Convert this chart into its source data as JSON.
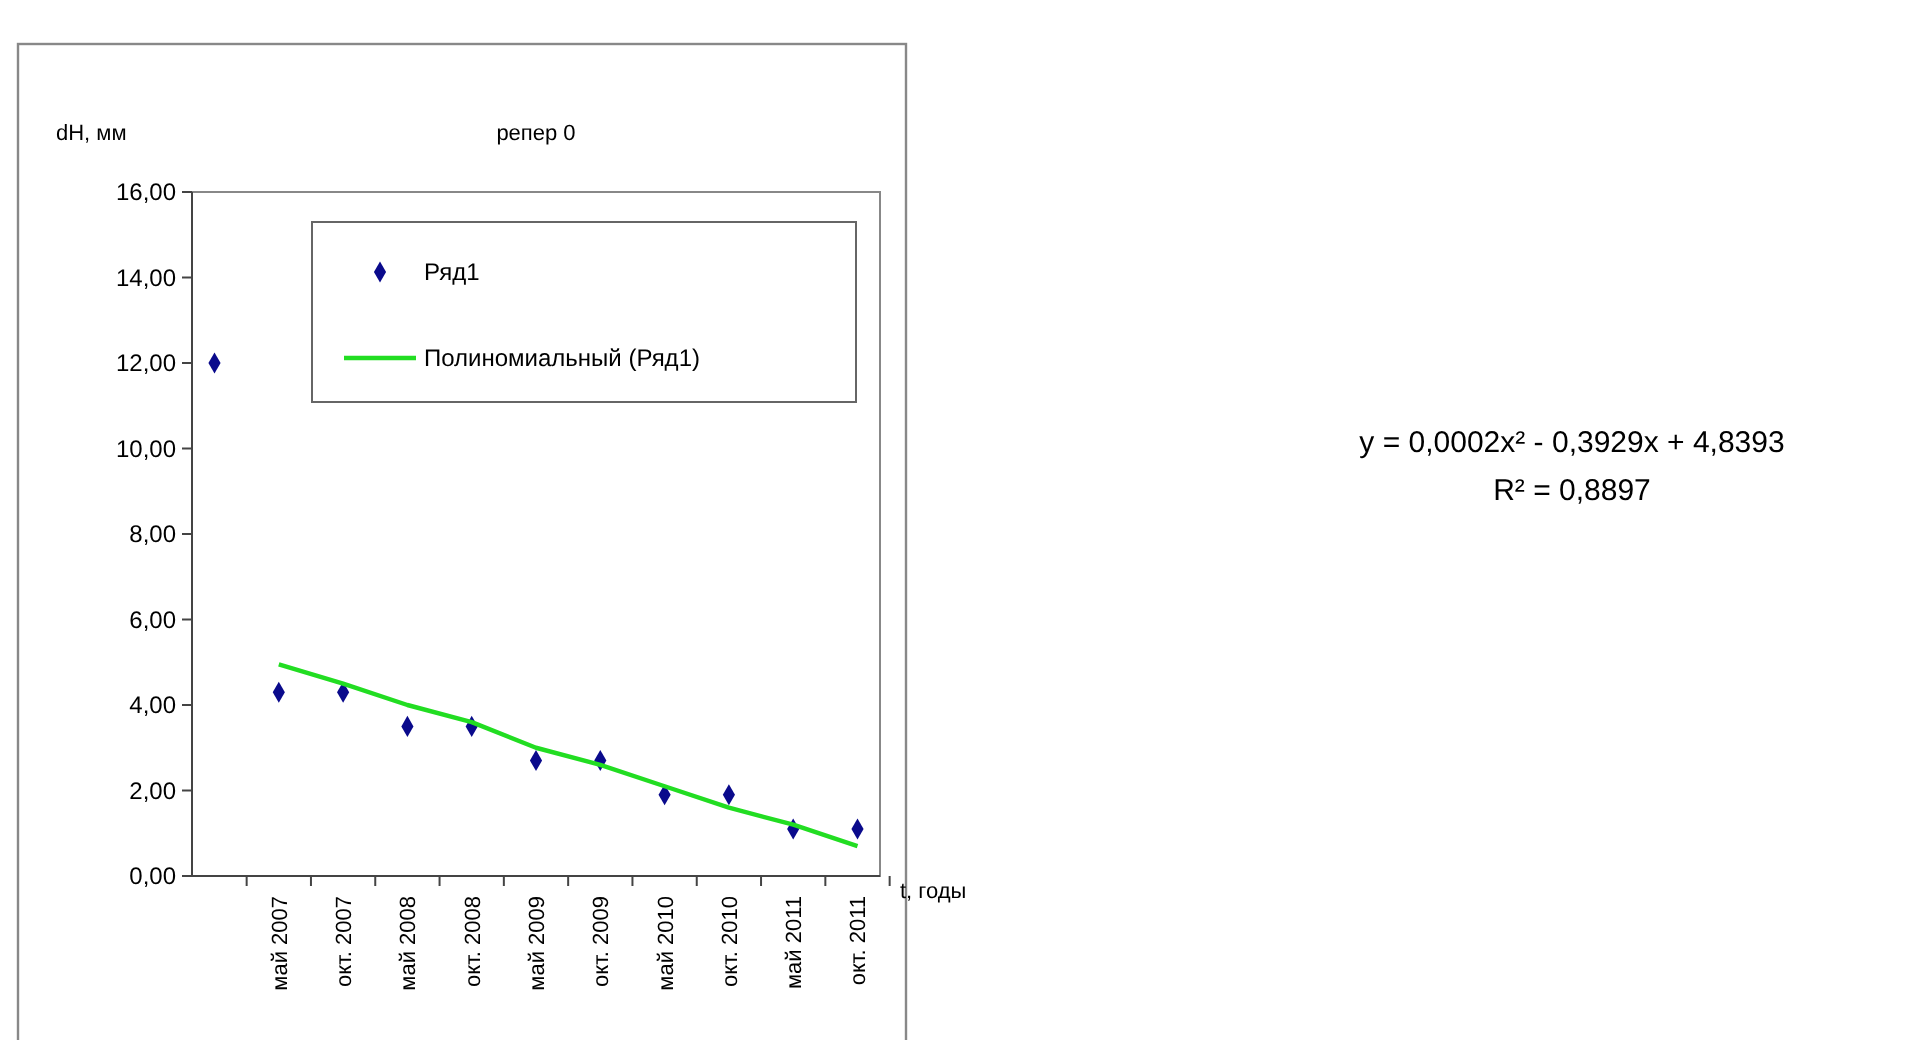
{
  "chart_data": {
    "type": "scatter",
    "title": "репер 0",
    "xlabel": "t, годы",
    "ylabel": "dH, мм",
    "categories": [
      null,
      "май 2007",
      "окт. 2007",
      "май 2008",
      "окт. 2008",
      "май 2009",
      "окт. 2009",
      "май 2010",
      "окт. 2010",
      "май 2011",
      "окт. 2011"
    ],
    "series": [
      {
        "name": "Ряд1",
        "marker": "diamond",
        "color": "#0a0a8c",
        "values": [
          12.0,
          4.3,
          4.3,
          3.5,
          3.5,
          2.7,
          2.7,
          1.9,
          1.9,
          1.1,
          1.1
        ]
      },
      {
        "name": "Полиномиальный (Ряд1)",
        "type": "line",
        "color": "#22dd22",
        "values": [
          null,
          4.95,
          4.5,
          4.0,
          3.6,
          3.0,
          2.6,
          2.1,
          1.6,
          1.2,
          0.7
        ]
      }
    ],
    "ylim": [
      0,
      16
    ],
    "yticks": [
      {
        "value": 0,
        "label": "0,00"
      },
      {
        "value": 2,
        "label": "2,00"
      },
      {
        "value": 4,
        "label": "4,00"
      },
      {
        "value": 6,
        "label": "6,00"
      },
      {
        "value": 8,
        "label": "8,00"
      },
      {
        "value": 10,
        "label": "10,00"
      },
      {
        "value": 12,
        "label": "12,00"
      },
      {
        "value": 14,
        "label": "14,00"
      },
      {
        "value": 16,
        "label": "16,00"
      }
    ],
    "line_style": "solid",
    "legend": "top",
    "grid": false,
    "annotations": [
      "y = 0,0002x² - 0,3929x + 4,8393",
      "R² = 0,8897"
    ]
  }
}
